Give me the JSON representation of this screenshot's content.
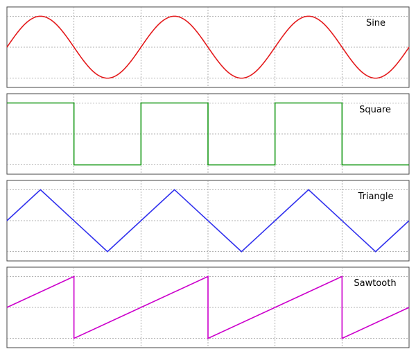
{
  "chart_data": [
    {
      "type": "line",
      "title": "",
      "label": "Sine",
      "color": "#e41a1c",
      "xlim": [
        0,
        3
      ],
      "ylim": [
        -1.3,
        1.3
      ],
      "grid": true,
      "x_gridlines": [
        0.5,
        1,
        1.5,
        2,
        2.5
      ],
      "y_gridlines": [
        -1,
        0,
        1
      ],
      "series": [
        {
          "values": {
            "waveform": "sine",
            "amplitude": 1,
            "period": 1,
            "cycles": 3,
            "x_start": 0,
            "y_start": 0
          }
        }
      ]
    },
    {
      "type": "line",
      "title": "",
      "label": "Square",
      "color": "#1a9a1a",
      "xlim": [
        0,
        3
      ],
      "ylim": [
        -1.3,
        1.3
      ],
      "grid": true,
      "x_gridlines": [
        0.5,
        1,
        1.5,
        2,
        2.5
      ],
      "y_gridlines": [
        -1,
        0,
        1
      ],
      "series": [
        {
          "values": {
            "waveform": "square",
            "amplitude": 1,
            "period": 1,
            "cycles": 3,
            "x_start": 0,
            "y_start": 1
          }
        }
      ]
    },
    {
      "type": "line",
      "title": "",
      "label": "Triangle",
      "color": "#3333ee",
      "xlim": [
        0,
        3
      ],
      "ylim": [
        -1.3,
        1.3
      ],
      "grid": true,
      "x_gridlines": [
        0.5,
        1,
        1.5,
        2,
        2.5
      ],
      "y_gridlines": [
        -1,
        0,
        1
      ],
      "series": [
        {
          "values": {
            "waveform": "triangle",
            "amplitude": 1,
            "period": 1,
            "cycles": 3,
            "x_start": 0,
            "y_start": 0
          }
        }
      ]
    },
    {
      "type": "line",
      "title": "",
      "label": "Sawtooth",
      "color": "#cc00cc",
      "xlim": [
        0,
        3
      ],
      "ylim": [
        -1.3,
        1.3
      ],
      "grid": true,
      "x_gridlines": [
        0.5,
        1,
        1.5,
        2,
        2.5
      ],
      "y_gridlines": [
        -1,
        0,
        1
      ],
      "series": [
        {
          "values": {
            "waveform": "sawtooth",
            "amplitude": 1,
            "period": 1,
            "cycles": 3,
            "x_start": 0,
            "y_start": 0
          }
        }
      ]
    }
  ]
}
